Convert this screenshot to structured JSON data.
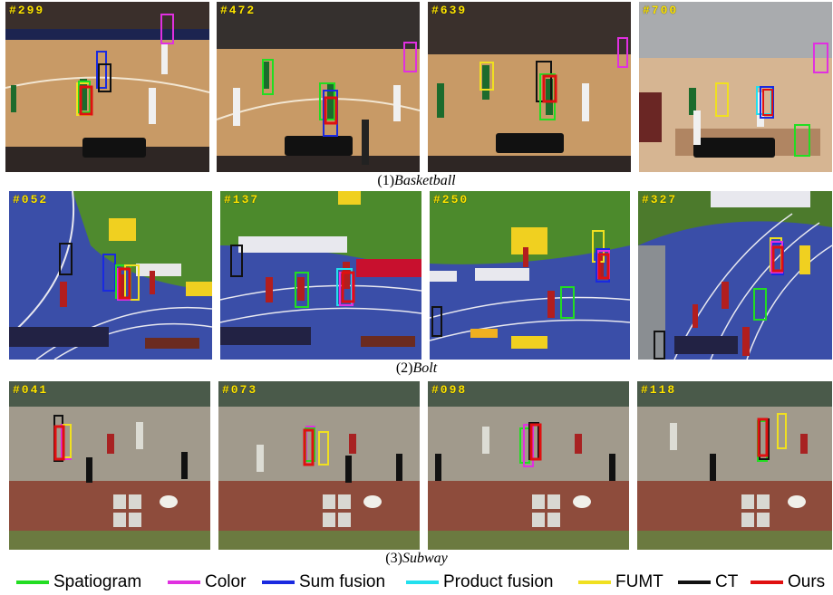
{
  "colors": {
    "spatiogram": "#22dd22",
    "color": "#e030e0",
    "sum_fusion": "#1a2ae0",
    "product_fusion": "#22e0ee",
    "fumt": "#f0e020",
    "ct": "#111111",
    "ours": "#e01010"
  },
  "rows": [
    {
      "caption_num": "(1)",
      "caption_name": "Basketball",
      "frames": [
        "#299",
        "#472",
        "#639",
        "#700"
      ]
    },
    {
      "caption_num": "(2)",
      "caption_name": "Bolt",
      "frames": [
        "#052",
        "#137",
        "#250",
        "#327"
      ]
    },
    {
      "caption_num": "(3)",
      "caption_name": "Subway",
      "frames": [
        "#041",
        "#073",
        "#098",
        "#118"
      ]
    }
  ],
  "legend": [
    {
      "label": "Spatiogram",
      "color": "#22dd22"
    },
    {
      "label": "Color",
      "color": "#e030e0"
    },
    {
      "label": "Sum fusion",
      "color": "#1a2ae0"
    },
    {
      "label": "Product fusion",
      "color": "#22e0ee"
    },
    {
      "label": "FUMT",
      "color": "#f0e020"
    },
    {
      "label": "CT",
      "color": "#111111"
    },
    {
      "label": "Ours",
      "color": "#e01010"
    }
  ]
}
